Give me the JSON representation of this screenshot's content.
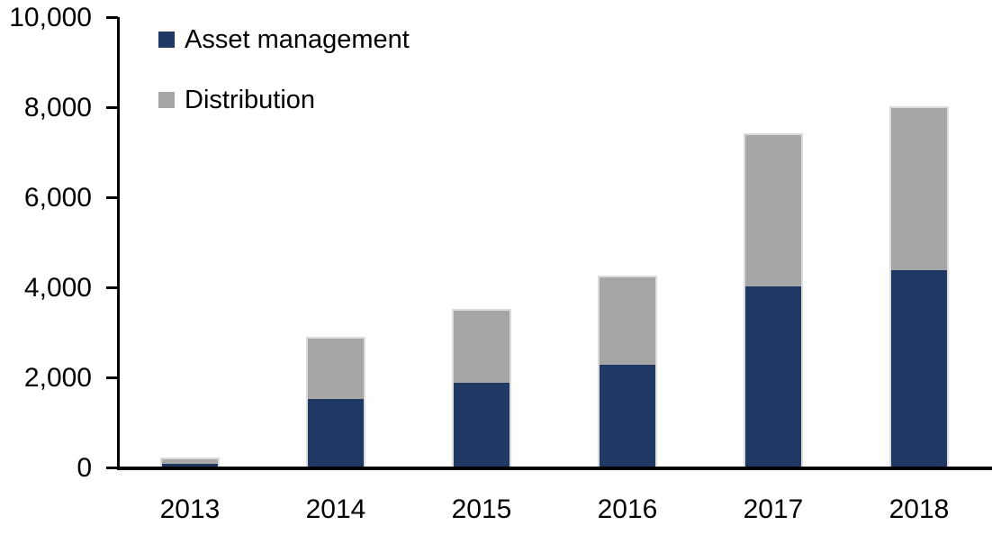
{
  "chart_data": {
    "type": "bar",
    "stacked": true,
    "title": "",
    "categories": [
      "2013",
      "2014",
      "2015",
      "2016",
      "2017",
      "2018"
    ],
    "series": [
      {
        "name": "Asset management",
        "color": "#1F3864",
        "values": [
          100,
          1550,
          1900,
          2300,
          4050,
          4400
        ]
      },
      {
        "name": "Distribution",
        "color": "#A6A6A6",
        "values": [
          100,
          1330,
          1600,
          1950,
          3350,
          3600
        ]
      }
    ],
    "xlabel": "",
    "ylabel": "",
    "ylim": [
      0,
      10000
    ],
    "yticks": [
      {
        "value": 0,
        "label": "0"
      },
      {
        "value": 2000,
        "label": "2,000"
      },
      {
        "value": 4000,
        "label": "4,000"
      },
      {
        "value": 6000,
        "label": "6,000"
      },
      {
        "value": 8000,
        "label": "8,000"
      },
      {
        "value": 10000,
        "label": "10,000"
      }
    ],
    "legend_position": "top-left",
    "grid": false
  },
  "colors": {
    "background": "#FFFFFF",
    "axis": "#000000",
    "text": "#000000",
    "bar_outline": "#DBDBDB",
    "asset_management": "#1F3864",
    "distribution": "#A6A6A6"
  }
}
